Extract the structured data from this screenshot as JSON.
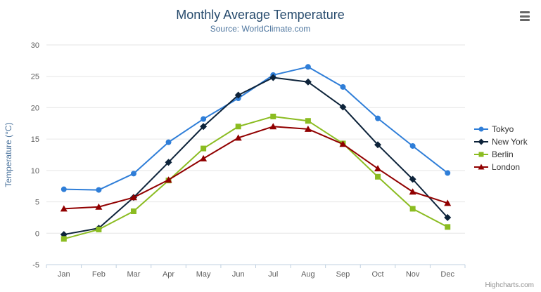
{
  "chart": {
    "title": "Monthly Average Temperature",
    "subtitle": "Source: WorldClimate.com",
    "credits": "Highcharts.com"
  },
  "toolbar": {
    "menu_icon": "hamburger-icon"
  },
  "chart_data": {
    "type": "line",
    "title": "Monthly Average Temperature",
    "subtitle": "Source: WorldClimate.com",
    "xlabel": "",
    "ylabel": "Temperature (°C)",
    "ylim": [
      -5,
      30
    ],
    "ytick_interval": 5,
    "grid": true,
    "legend_position": "right",
    "categories": [
      "Jan",
      "Feb",
      "Mar",
      "Apr",
      "May",
      "Jun",
      "Jul",
      "Aug",
      "Sep",
      "Oct",
      "Nov",
      "Dec"
    ],
    "series": [
      {
        "name": "Tokyo",
        "color": "#2f7ed8",
        "marker": "circle",
        "values": [
          7.0,
          6.9,
          9.5,
          14.5,
          18.2,
          21.5,
          25.2,
          26.5,
          23.3,
          18.3,
          13.9,
          9.6
        ]
      },
      {
        "name": "New York",
        "color": "#0d233a",
        "marker": "diamond",
        "values": [
          -0.2,
          0.8,
          5.7,
          11.3,
          17.0,
          22.0,
          24.8,
          24.1,
          20.1,
          14.1,
          8.6,
          2.5
        ]
      },
      {
        "name": "Berlin",
        "color": "#8bbc21",
        "marker": "square",
        "values": [
          -0.9,
          0.6,
          3.5,
          8.4,
          13.5,
          17.0,
          18.6,
          17.9,
          14.3,
          9.0,
          3.9,
          1.0
        ]
      },
      {
        "name": "London",
        "color": "#910000",
        "marker": "triangle",
        "values": [
          3.9,
          4.2,
          5.7,
          8.5,
          11.9,
          15.2,
          17.0,
          16.6,
          14.2,
          10.3,
          6.6,
          4.8
        ]
      }
    ]
  }
}
